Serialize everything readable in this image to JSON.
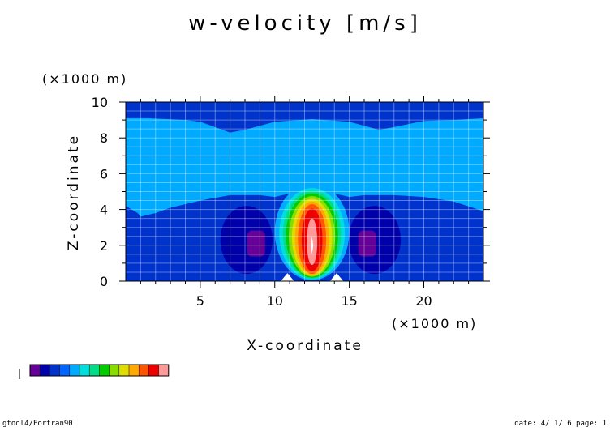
{
  "chart_data": {
    "type": "heatmap",
    "title": "w-velocity [m/s]",
    "xlabel": "X-coordinate",
    "ylabel": "Z-coordinate",
    "x_unit": "(×1000 m)",
    "y_unit": "(×1000 m)",
    "xlim": [
      0,
      24
    ],
    "ylim": [
      0,
      10
    ],
    "x_ticks": [
      5,
      10,
      15,
      20
    ],
    "y_ticks": [
      0,
      2,
      4,
      6,
      8,
      10
    ],
    "grid": true,
    "color_levels": [
      "#660099",
      "#0000aa",
      "#0033cc",
      "#0066ff",
      "#00aaff",
      "#00dddd",
      "#00dd88",
      "#00cc00",
      "#88dd00",
      "#dddd00",
      "#ffaa00",
      "#ff5500",
      "#ee0000",
      "#ff9999"
    ],
    "field_samples": [
      {
        "x": 2,
        "z": 9.5,
        "level": 2
      },
      {
        "x": 12,
        "z": 9.5,
        "level": 2
      },
      {
        "x": 22,
        "z": 9.5,
        "level": 2
      },
      {
        "x": 5,
        "z": 7,
        "level": 4
      },
      {
        "x": 12,
        "z": 7,
        "level": 4
      },
      {
        "x": 20,
        "z": 7,
        "level": 4
      },
      {
        "x": 3,
        "z": 2,
        "level": 2
      },
      {
        "x": 21,
        "z": 2,
        "level": 2
      },
      {
        "x": 8.5,
        "z": 2.2,
        "level": 1
      },
      {
        "x": 16.5,
        "z": 2.2,
        "level": 1
      },
      {
        "x": 8.7,
        "z": 2.2,
        "level": 0
      },
      {
        "x": 16.3,
        "z": 2.2,
        "level": 0
      },
      {
        "x": 12.5,
        "z": 4.5,
        "level": 4
      },
      {
        "x": 12.5,
        "z": 3.8,
        "level": 6
      },
      {
        "x": 12.5,
        "z": 3.2,
        "level": 8
      },
      {
        "x": 12.5,
        "z": 2.7,
        "level": 10
      },
      {
        "x": 12.5,
        "z": 2.3,
        "level": 12
      },
      {
        "x": 12.5,
        "z": 2.0,
        "level": 13
      }
    ]
  },
  "footer": {
    "left": "gtool4/Fortran90",
    "right": "date: 4/ 1/ 6 page: 1"
  },
  "colorbar_tick": "|"
}
